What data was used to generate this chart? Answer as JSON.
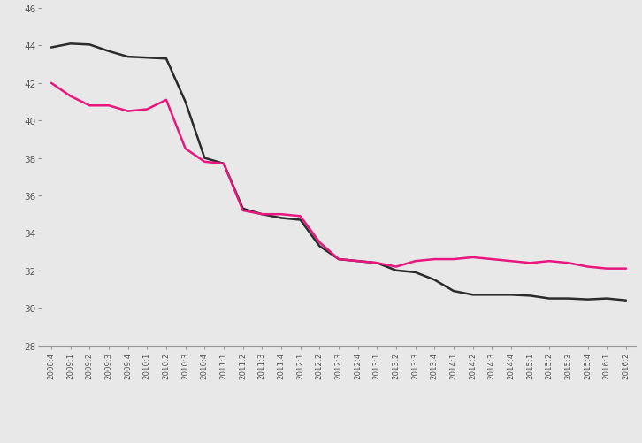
{
  "x_labels": [
    "2008:4",
    "2009:1",
    "2009:2",
    "2009:3",
    "2009:4",
    "2010:1",
    "2010:2",
    "2010:3",
    "2010:4",
    "2011:1",
    "2011:2",
    "2011:3",
    "2011:4",
    "2012:1",
    "2012:2",
    "2012:3",
    "2012:4",
    "2013:1",
    "2013:2",
    "2013:3",
    "2013:4",
    "2014:1",
    "2014:2",
    "2014:3",
    "2014:4",
    "2015:1",
    "2015:2",
    "2015:3",
    "2015:4",
    "2016:1",
    "2016:2"
  ],
  "black_line": [
    43.9,
    44.1,
    44.05,
    43.7,
    43.4,
    43.35,
    43.3,
    41.0,
    38.0,
    37.7,
    35.3,
    35.0,
    34.8,
    34.7,
    33.3,
    32.6,
    32.5,
    32.4,
    32.0,
    31.9,
    31.5,
    30.9,
    30.7,
    30.7,
    30.7,
    30.65,
    30.5,
    30.5,
    30.45,
    30.5,
    30.4
  ],
  "pink_line": [
    42.0,
    41.3,
    40.8,
    40.8,
    40.5,
    40.6,
    41.1,
    38.5,
    37.8,
    37.7,
    35.2,
    35.0,
    35.0,
    34.9,
    33.5,
    32.6,
    32.5,
    32.4,
    32.2,
    32.5,
    32.6,
    32.6,
    32.7,
    32.6,
    32.5,
    32.4,
    32.5,
    32.4,
    32.2,
    32.1,
    32.1
  ],
  "black_color": "#2b2b2b",
  "pink_color": "#e8177d",
  "ylim": [
    28,
    46
  ],
  "yticks": [
    28,
    30,
    32,
    34,
    36,
    38,
    40,
    42,
    44,
    46
  ],
  "background_color": "#e8e8e8",
  "line_width": 1.8,
  "tick_color": "#999999",
  "label_color": "#555555"
}
